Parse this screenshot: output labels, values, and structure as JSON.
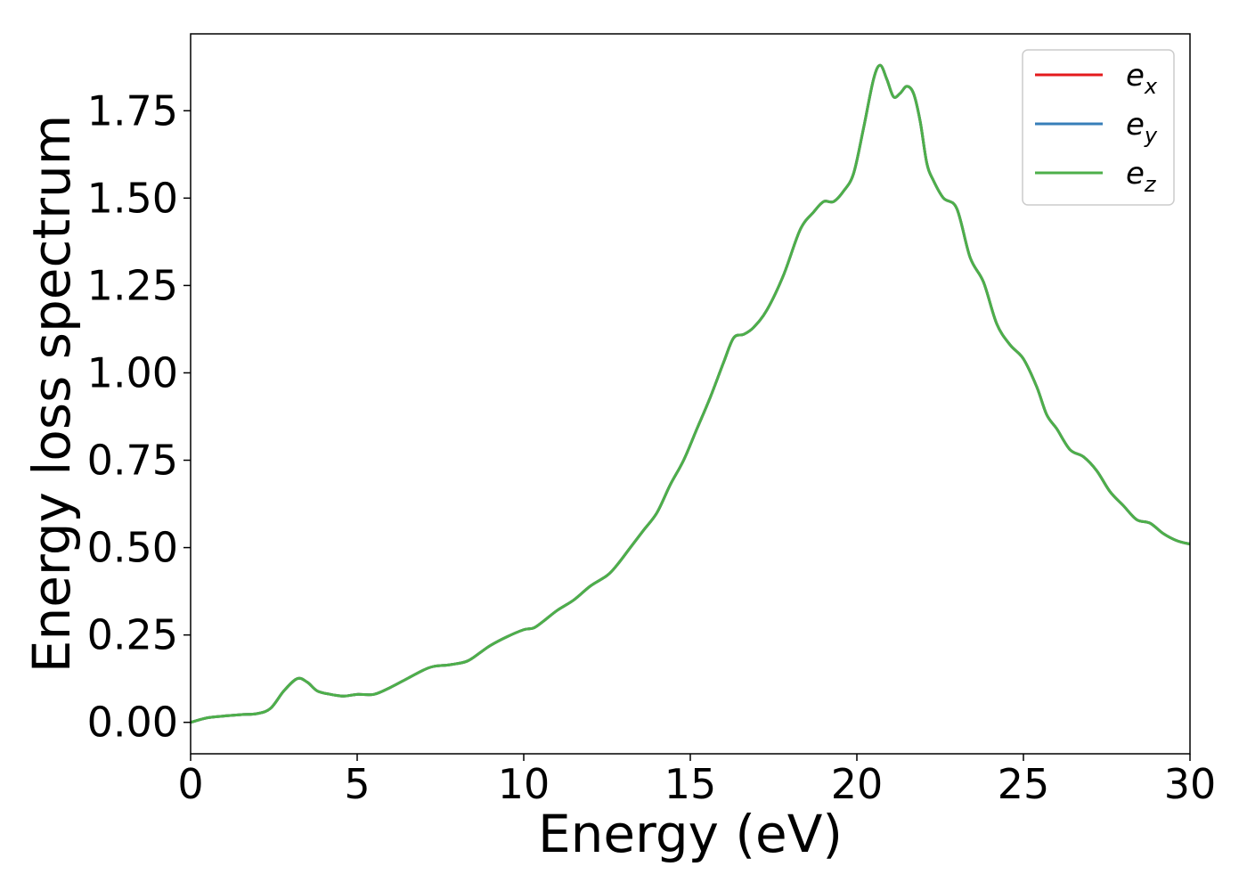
{
  "chart_data": {
    "type": "line",
    "title": "",
    "xlabel": "Energy (eV)",
    "ylabel": "Energy loss spectrum",
    "xlim": [
      0,
      30
    ],
    "ylim": [
      -0.09,
      1.97
    ],
    "xticks": [
      0,
      5,
      10,
      15,
      20,
      25,
      30
    ],
    "xtick_labels": [
      "0",
      "5",
      "10",
      "15",
      "20",
      "25",
      "30"
    ],
    "yticks": [
      0.0,
      0.25,
      0.5,
      0.75,
      1.0,
      1.25,
      1.5,
      1.75
    ],
    "ytick_labels": [
      "0.00",
      "0.25",
      "0.50",
      "0.75",
      "1.00",
      "1.25",
      "1.50",
      "1.75"
    ],
    "grid": false,
    "legend_position": "top-right",
    "series": [
      {
        "name": "e",
        "sub": "x",
        "color": "#e41a1c"
      },
      {
        "name": "e",
        "sub": "y",
        "color": "#377eb8"
      },
      {
        "name": "e",
        "sub": "z",
        "color": "#4daf4a"
      }
    ],
    "x": [
      0,
      0.5,
      1,
      1.5,
      2,
      2.4,
      2.8,
      3.2,
      3.5,
      3.8,
      4.2,
      4.6,
      5,
      5.5,
      6,
      6.5,
      7,
      7.3,
      7.8,
      8.3,
      8.7,
      9,
      9.5,
      10,
      10.3,
      10.6,
      11,
      11.5,
      12,
      12.5,
      12.8,
      13.2,
      13.6,
      14,
      14.4,
      14.8,
      15.2,
      15.6,
      16,
      16.3,
      16.6,
      16.9,
      17.3,
      17.8,
      18.3,
      18.7,
      19,
      19.3,
      19.6,
      19.9,
      20.2,
      20.5,
      20.7,
      20.9,
      21.1,
      21.3,
      21.5,
      21.7,
      21.9,
      22.1,
      22.3,
      22.6,
      23,
      23.4,
      23.8,
      24.2,
      24.6,
      25,
      25.4,
      25.7,
      26,
      26.4,
      26.8,
      27.2,
      27.6,
      28,
      28.4,
      28.8,
      29.2,
      29.6,
      30
    ],
    "y_values": [
      0.0,
      0.013,
      0.018,
      0.022,
      0.025,
      0.04,
      0.09,
      0.125,
      0.115,
      0.09,
      0.08,
      0.075,
      0.08,
      0.08,
      0.1,
      0.125,
      0.15,
      0.16,
      0.165,
      0.175,
      0.2,
      0.22,
      0.245,
      0.265,
      0.27,
      0.29,
      0.32,
      0.35,
      0.39,
      0.42,
      0.45,
      0.5,
      0.55,
      0.6,
      0.68,
      0.75,
      0.84,
      0.93,
      1.03,
      1.1,
      1.11,
      1.13,
      1.18,
      1.28,
      1.41,
      1.46,
      1.49,
      1.49,
      1.52,
      1.57,
      1.7,
      1.84,
      1.88,
      1.84,
      1.79,
      1.8,
      1.82,
      1.8,
      1.72,
      1.6,
      1.55,
      1.5,
      1.47,
      1.33,
      1.26,
      1.14,
      1.08,
      1.04,
      0.96,
      0.88,
      0.84,
      0.78,
      0.76,
      0.72,
      0.66,
      0.62,
      0.58,
      0.57,
      0.54,
      0.52,
      0.51
    ]
  }
}
